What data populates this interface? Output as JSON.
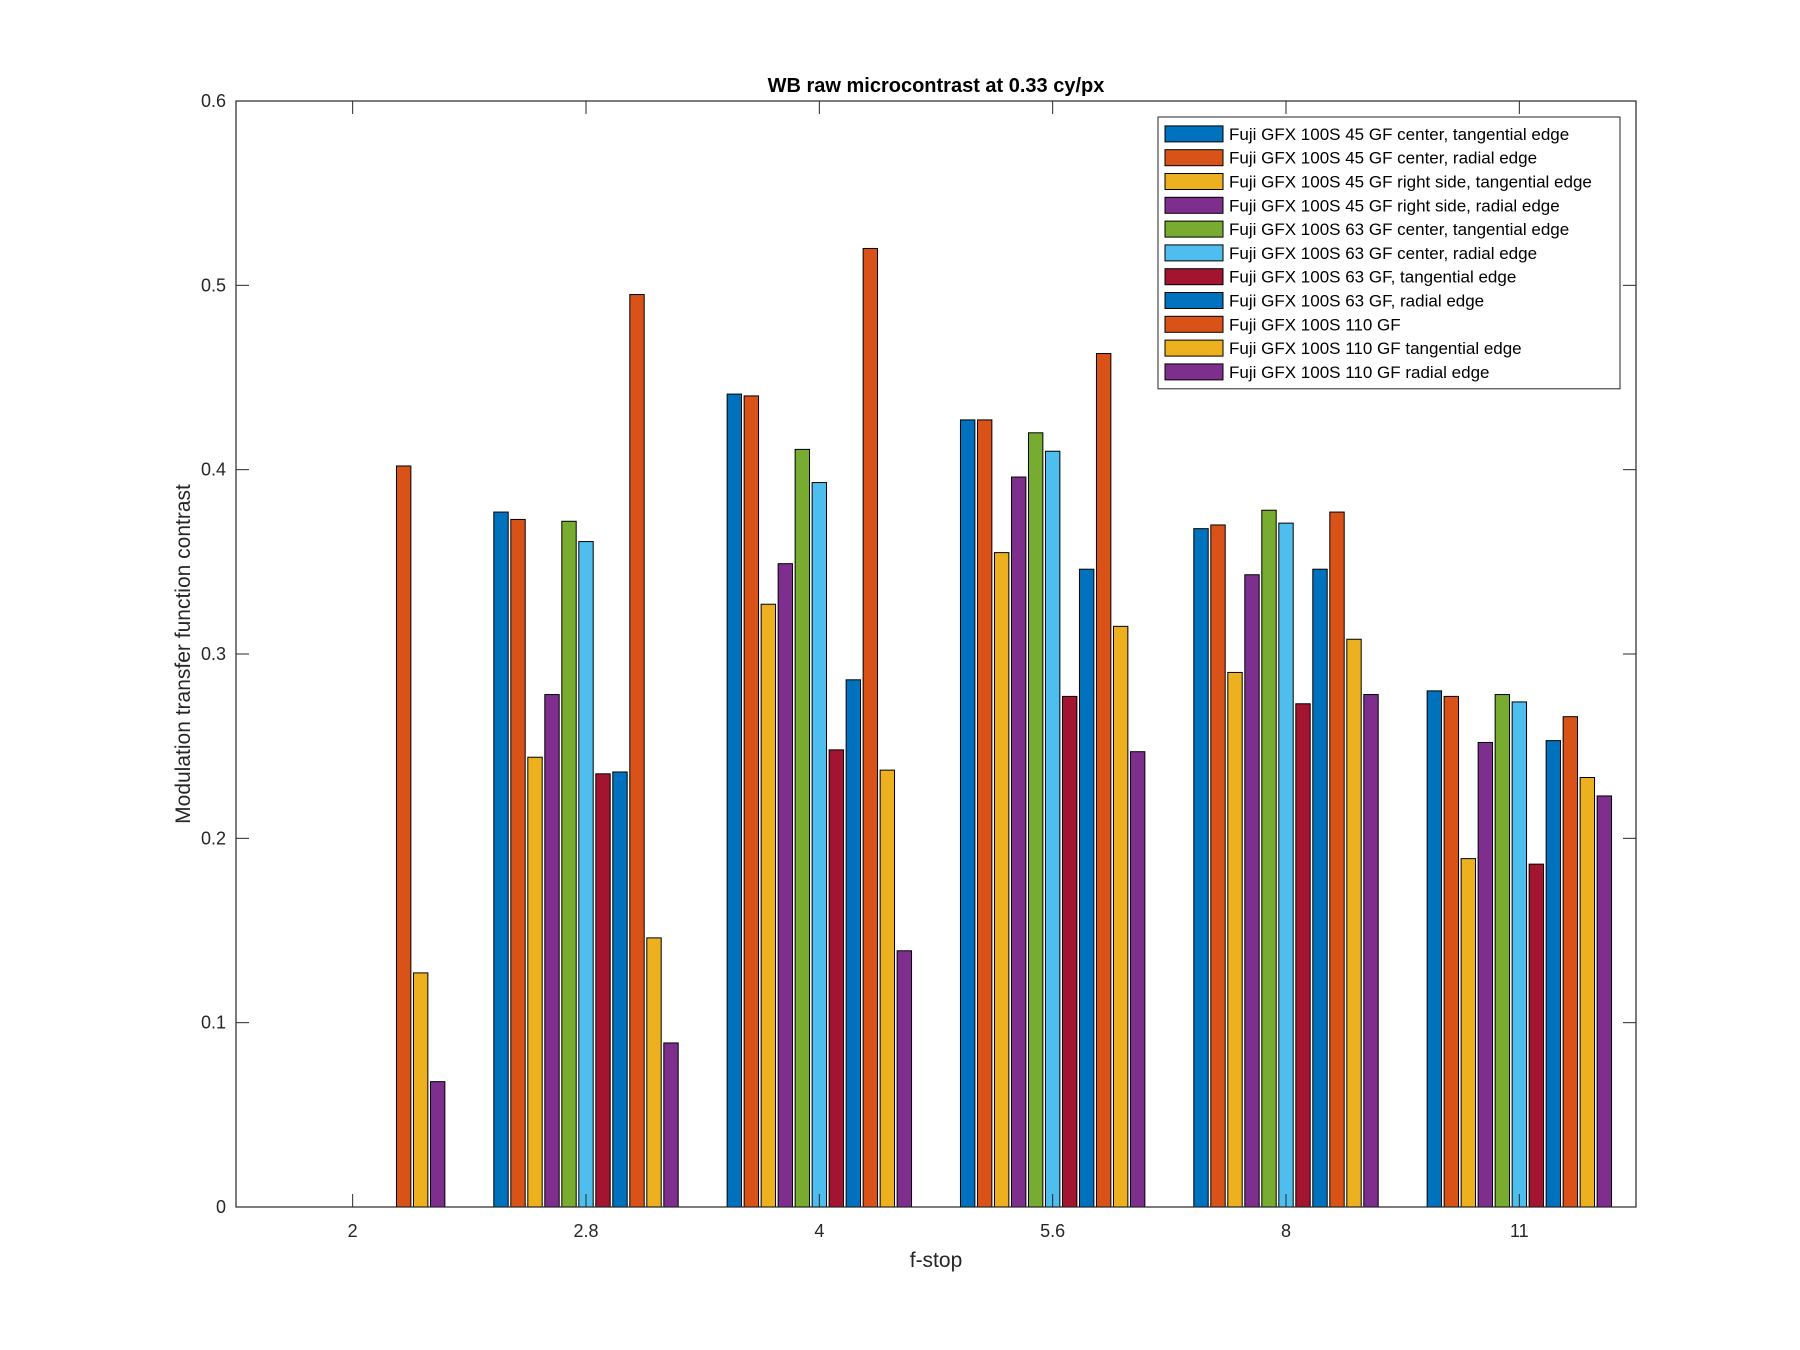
{
  "chart_data": {
    "type": "bar",
    "title": "WB raw  microcontrast at 0.33 cy/px",
    "xlabel": "f-stop",
    "ylabel": "Modulation transfer function contrast",
    "categories": [
      "2",
      "2.8",
      "4",
      "5.6",
      "8",
      "11"
    ],
    "ylim": [
      0,
      0.6
    ],
    "yticks": [
      "0",
      "0.1",
      "0.2",
      "0.3",
      "0.4",
      "0.5",
      "0.6"
    ],
    "grid": false,
    "legend_position": "top-right",
    "series": [
      {
        "name": "Fuji GFX 100S 45 GF center, tangential edge",
        "color": "#0072BD",
        "values": [
          null,
          0.377,
          0.441,
          0.427,
          0.368,
          0.28
        ]
      },
      {
        "name": "Fuji GFX 100S 45 GF center, radial edge",
        "color": "#D95319",
        "values": [
          null,
          0.373,
          0.44,
          0.427,
          0.37,
          0.277
        ]
      },
      {
        "name": "Fuji GFX 100S 45 GF right side, tangential edge",
        "color": "#EDB120",
        "values": [
          null,
          0.244,
          0.327,
          0.355,
          0.29,
          0.189
        ]
      },
      {
        "name": "Fuji GFX 100S 45 GF right side, radial edge",
        "color": "#7E2F8E",
        "values": [
          null,
          0.278,
          0.349,
          0.396,
          0.343,
          0.252
        ]
      },
      {
        "name": "Fuji GFX 100S 63 GF center, tangential edge",
        "color": "#77AC30",
        "values": [
          null,
          0.372,
          0.411,
          0.42,
          0.378,
          0.278
        ]
      },
      {
        "name": "Fuji GFX 100S 63 GF center, radial edge",
        "color": "#4DBEEE",
        "values": [
          null,
          0.361,
          0.393,
          0.41,
          0.371,
          0.274
        ]
      },
      {
        "name": "Fuji GFX 100S 63 GF, tangential edge",
        "color": "#A2142F",
        "values": [
          null,
          0.235,
          0.248,
          0.277,
          0.273,
          0.186
        ]
      },
      {
        "name": "Fuji GFX 100S 63 GF, radial edge",
        "color": "#0072BD",
        "values": [
          null,
          0.236,
          0.286,
          0.346,
          0.346,
          0.253
        ]
      },
      {
        "name": "Fuji GFX 100S 110 GF",
        "color": "#D95319",
        "values": [
          0.402,
          0.495,
          0.52,
          0.463,
          0.377,
          0.266
        ]
      },
      {
        "name": "Fuji GFX 100S 110 GF tangential edge",
        "color": "#EDB120",
        "values": [
          0.127,
          0.146,
          0.237,
          0.315,
          0.308,
          0.233
        ]
      },
      {
        "name": "Fuji GFX 100S 110 GF radial edge",
        "color": "#7E2F8E",
        "values": [
          0.068,
          0.089,
          0.139,
          0.247,
          0.278,
          0.223
        ]
      }
    ]
  }
}
